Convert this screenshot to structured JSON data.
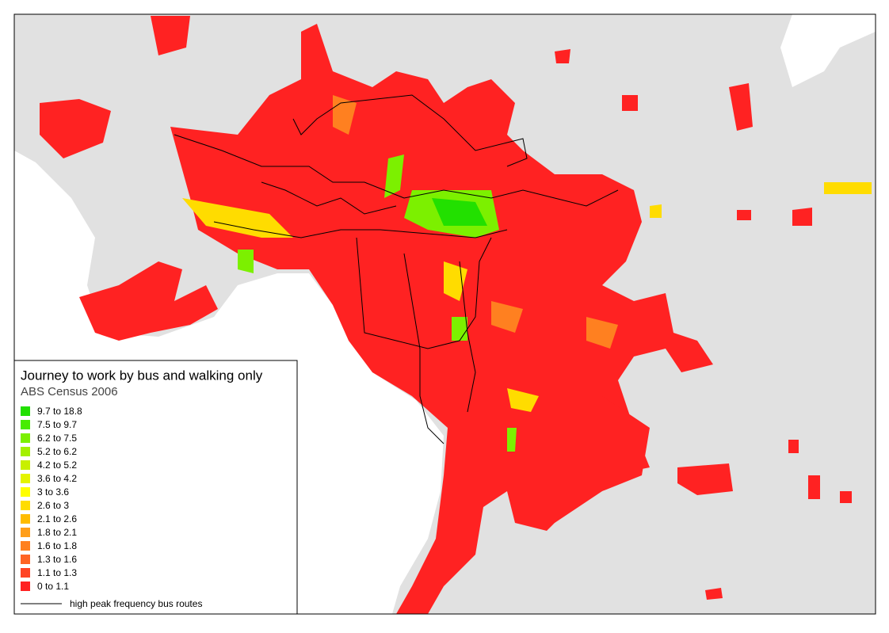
{
  "legend": {
    "title": "Journey to work by bus and walking only",
    "subtitle": "ABS Census 2006",
    "classes": [
      {
        "label": "9.7 to 18.8",
        "color": "#22e000"
      },
      {
        "label": "7.5 to 9.7",
        "color": "#48ec00"
      },
      {
        "label": "6.2 to 7.5",
        "color": "#7cf000"
      },
      {
        "label": "5.2 to 6.2",
        "color": "#a4f000"
      },
      {
        "label": "4.2 to 5.2",
        "color": "#c8f000"
      },
      {
        "label": "3.6 to 4.2",
        "color": "#e4f400"
      },
      {
        "label": "3 to 3.6",
        "color": "#ffff00"
      },
      {
        "label": "2.6 to 3",
        "color": "#ffdc00"
      },
      {
        "label": "2.1 to 2.6",
        "color": "#ffbc00"
      },
      {
        "label": "1.8 to 2.1",
        "color": "#ff9e1a"
      },
      {
        "label": "1.6 to 1.8",
        "color": "#ff8020"
      },
      {
        "label": "1.3 to 1.6",
        "color": "#ff6424"
      },
      {
        "label": "1.1 to 1.3",
        "color": "#ff4424"
      },
      {
        "label": "0 to 1.1",
        "color": "#ff2222"
      }
    ],
    "route_label": "high peak frequency bus routes"
  }
}
